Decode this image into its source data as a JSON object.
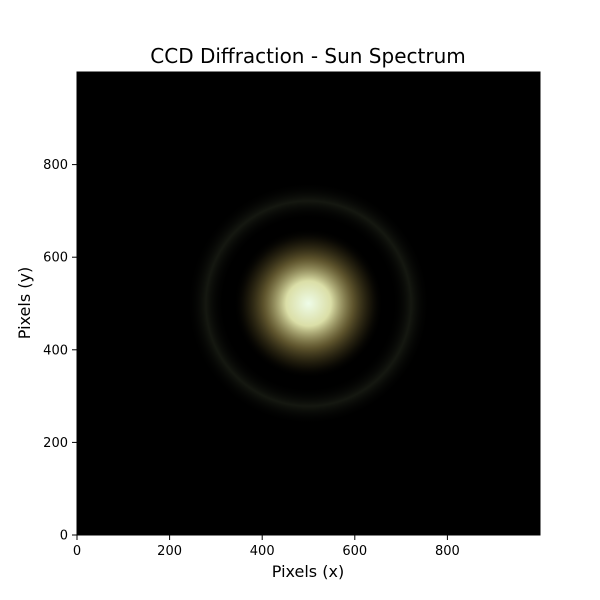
{
  "chart_data": {
    "type": "heatmap",
    "title": "CCD Diffraction - Sun Spectrum",
    "xlabel": "Pixels (x)",
    "ylabel": "Pixels (y)",
    "xlim": [
      0,
      1000
    ],
    "ylim": [
      0,
      1000
    ],
    "x_ticks": [
      0,
      200,
      400,
      600,
      800
    ],
    "y_ticks": [
      0,
      200,
      400,
      600,
      800
    ],
    "x_tick_labels": [
      "0",
      "200",
      "400",
      "600",
      "800"
    ],
    "y_tick_labels": [
      "0",
      "200",
      "400",
      "600",
      "800"
    ],
    "grid": false,
    "background_color": "#000000",
    "pattern": {
      "center_x": 500,
      "center_y": 500,
      "core_color": "#eefce8",
      "mid_color": "#e6eab0",
      "edge_color": "#7a6a30",
      "ring_color": "#171a12"
    }
  }
}
